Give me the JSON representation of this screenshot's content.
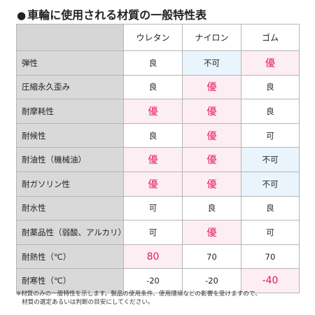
{
  "title": {
    "bullet": "●",
    "text": "車輪に使用される材質の一般特性表"
  },
  "table": {
    "columns": [
      "",
      "ウレタン",
      "ナイロン",
      "ゴム"
    ],
    "rows": [
      {
        "label": "弾性",
        "cells": [
          {
            "text": "良",
            "rating": "plain"
          },
          {
            "text": "不可",
            "rating": "bad"
          },
          {
            "text": "優",
            "rating": "good"
          }
        ]
      },
      {
        "label": "圧縮永久歪み",
        "cells": [
          {
            "text": "良",
            "rating": "plain"
          },
          {
            "text": "優",
            "rating": "good"
          },
          {
            "text": "良",
            "rating": "plain"
          }
        ]
      },
      {
        "label": "耐摩耗性",
        "cells": [
          {
            "text": "優",
            "rating": "good"
          },
          {
            "text": "優",
            "rating": "good"
          },
          {
            "text": "良",
            "rating": "plain"
          }
        ]
      },
      {
        "label": "耐候性",
        "cells": [
          {
            "text": "良",
            "rating": "plain"
          },
          {
            "text": "優",
            "rating": "good"
          },
          {
            "text": "可",
            "rating": "plain"
          }
        ]
      },
      {
        "label": "耐油性（機械油）",
        "cells": [
          {
            "text": "優",
            "rating": "good"
          },
          {
            "text": "優",
            "rating": "good"
          },
          {
            "text": "不可",
            "rating": "bad"
          }
        ]
      },
      {
        "label": "耐ガソリン性",
        "cells": [
          {
            "text": "優",
            "rating": "good"
          },
          {
            "text": "優",
            "rating": "good"
          },
          {
            "text": "不可",
            "rating": "bad"
          }
        ]
      },
      {
        "label": "耐水性",
        "cells": [
          {
            "text": "可",
            "rating": "plain"
          },
          {
            "text": "良",
            "rating": "plain"
          },
          {
            "text": "良",
            "rating": "plain"
          }
        ]
      },
      {
        "label": "耐薬品性（弱酸、アルカリ）",
        "cells": [
          {
            "text": "可",
            "rating": "plain"
          },
          {
            "text": "優",
            "rating": "good"
          },
          {
            "text": "可",
            "rating": "plain"
          }
        ]
      },
      {
        "label": "耐熱性（℃）",
        "cells": [
          {
            "text": "80",
            "rating": "good"
          },
          {
            "text": "70",
            "rating": "plain"
          },
          {
            "text": "70",
            "rating": "plain"
          }
        ]
      },
      {
        "label": "耐寒性（℃）",
        "cells": [
          {
            "text": "-20",
            "rating": "plain"
          },
          {
            "text": "-20",
            "rating": "plain"
          },
          {
            "text": "-40",
            "rating": "good"
          }
        ]
      }
    ]
  },
  "note": {
    "line1": "※材質のみの一般特性を示します。製品の使用条件、使用環境などの影響を受けますので、",
    "line2": "材質の選定あるいは判断の目安にしてください。"
  },
  "colors": {
    "good_bg": "#fdeef3",
    "good_text": "#e5175a",
    "bad_bg": "#e9f4fc",
    "label_bg": "#d9d9d9",
    "border": "#b5b5b5"
  }
}
